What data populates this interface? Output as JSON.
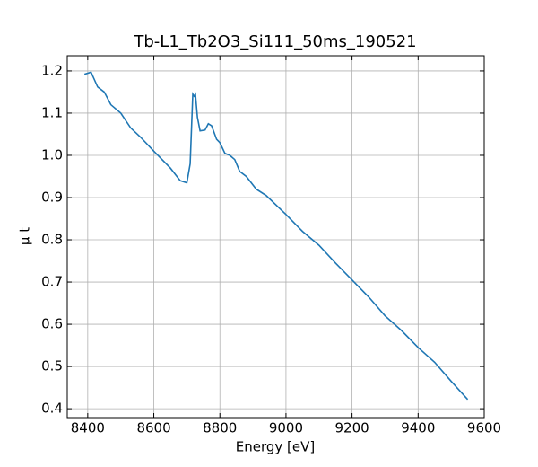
{
  "chart_data": {
    "type": "line",
    "title": "Tb-L1_Tb2O3_Si111_50ms_190521",
    "x_label": "Energy [eV]",
    "y_label": "μ t",
    "x": [
      8390,
      8410,
      8430,
      8450,
      8470,
      8500,
      8530,
      8560,
      8600,
      8650,
      8680,
      8700,
      8710,
      8718,
      8722,
      8726,
      8732,
      8740,
      8755,
      8765,
      8775,
      8790,
      8800,
      8815,
      8830,
      8845,
      8860,
      8880,
      8910,
      8940,
      9000,
      9050,
      9100,
      9150,
      9200,
      9250,
      9300,
      9350,
      9400,
      9450,
      9500,
      9550
    ],
    "series": [
      {
        "name": "Tb-L1",
        "color": "#1f77b4",
        "values": [
          1.192,
          1.197,
          1.162,
          1.15,
          1.12,
          1.1,
          1.065,
          1.043,
          1.01,
          0.97,
          0.94,
          0.935,
          0.98,
          1.145,
          1.14,
          1.145,
          1.09,
          1.058,
          1.06,
          1.075,
          1.07,
          1.038,
          1.03,
          1.005,
          1.0,
          0.99,
          0.962,
          0.95,
          0.92,
          0.905,
          0.86,
          0.82,
          0.787,
          0.745,
          0.705,
          0.665,
          0.62,
          0.585,
          0.545,
          0.51,
          0.465,
          0.422
        ]
      }
    ],
    "xlim": [
      8338,
      9600
    ],
    "ylim": [
      0.379,
      1.236
    ],
    "xticks": [
      8400,
      8600,
      8800,
      9000,
      9200,
      9400,
      9600
    ],
    "yticks": [
      {
        "value": 0.4,
        "label": "0.4"
      },
      {
        "value": 0.5,
        "label": "0.5"
      },
      {
        "value": 0.6,
        "label": "0.6"
      },
      {
        "value": 0.7,
        "label": "0.7"
      },
      {
        "value": 0.8,
        "label": "0.8"
      },
      {
        "value": 0.9,
        "label": "0.9"
      },
      {
        "value": 1.0,
        "label": "1.0"
      },
      {
        "value": 1.1,
        "label": "1.1"
      },
      {
        "value": 1.2,
        "label": "1.2"
      }
    ],
    "grid": true
  }
}
